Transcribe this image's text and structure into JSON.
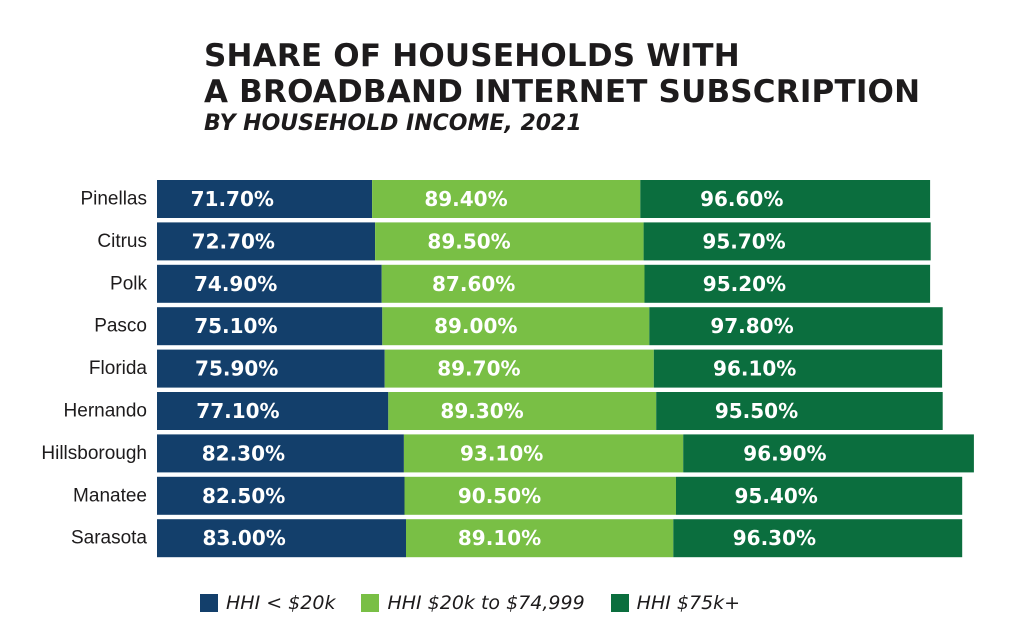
{
  "title": {
    "line1": "SHARE OF HOUSEHOLDS WITH",
    "line2": "A BROADBAND INTERNET SUBSCRIPTION",
    "subtitle": "BY HOUSEHOLD INCOME, 2021"
  },
  "colors": {
    "low": "#133f6b",
    "mid": "#79bf45",
    "high": "#0b6e3e"
  },
  "chart_data": {
    "type": "bar",
    "orientation": "horizontal",
    "stacked": true,
    "title": "SHARE OF HOUSEHOLDS WITH A BROADBAND INTERNET SUBSCRIPTION",
    "subtitle": "BY HOUSEHOLD INCOME, 2021",
    "xlabel": "",
    "ylabel": "",
    "categories": [
      "Pinellas",
      "Citrus",
      "Polk",
      "Pasco",
      "Florida",
      "Hernando",
      "Hillsborough",
      "Manatee",
      "Sarasota"
    ],
    "series": [
      {
        "name": "HHI < $20k",
        "values": [
          71.7,
          72.7,
          74.9,
          75.1,
          75.9,
          77.1,
          82.3,
          82.5,
          83.0
        ],
        "labels": [
          "71.70%",
          "72.70%",
          "74.90%",
          "75.10%",
          "75.90%",
          "77.10%",
          "82.30%",
          "82.50%",
          "83.00%"
        ]
      },
      {
        "name": "HHI $20k to $74,999",
        "values": [
          89.4,
          89.5,
          87.6,
          89.0,
          89.7,
          89.3,
          93.1,
          90.5,
          89.1
        ],
        "labels": [
          "89.40%",
          "89.50%",
          "87.60%",
          "89.00%",
          "89.70%",
          "89.30%",
          "93.10%",
          "90.50%",
          "89.10%"
        ]
      },
      {
        "name": "HHI $75k+",
        "values": [
          96.6,
          95.7,
          95.2,
          97.8,
          96.1,
          95.5,
          96.9,
          95.4,
          96.3
        ],
        "labels": [
          "96.60%",
          "95.70%",
          "95.20%",
          "97.80%",
          "96.10%",
          "95.50%",
          "96.90%",
          "95.40%",
          "96.30%"
        ]
      }
    ],
    "legend_position": "bottom",
    "grid": false
  },
  "legend": [
    {
      "label": "HHI < $20k",
      "color_key": "low"
    },
    {
      "label": "HHI $20k to $74,999",
      "color_key": "mid"
    },
    {
      "label": "HHI $75k+",
      "color_key": "high"
    }
  ]
}
